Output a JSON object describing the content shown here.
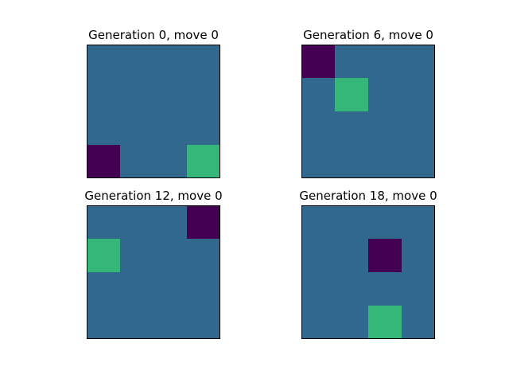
{
  "chart_data": [
    {
      "type": "heatmap",
      "title": "Generation 0, move 0",
      "rows": 4,
      "cols": 4,
      "values": [
        [
          0,
          0,
          0,
          0
        ],
        [
          0,
          0,
          0,
          0
        ],
        [
          0,
          0,
          0,
          0
        ],
        [
          -1,
          0,
          0,
          1
        ]
      ],
      "colors": {
        "-1": "#440154",
        "0": "#31688e",
        "1": "#35b779"
      },
      "xticks": "none",
      "yticks": "none"
    },
    {
      "type": "heatmap",
      "title": "Generation 6, move 0",
      "rows": 4,
      "cols": 4,
      "values": [
        [
          -1,
          0,
          0,
          0
        ],
        [
          0,
          1,
          0,
          0
        ],
        [
          0,
          0,
          0,
          0
        ],
        [
          0,
          0,
          0,
          0
        ]
      ],
      "colors": {
        "-1": "#440154",
        "0": "#31688e",
        "1": "#35b779"
      },
      "xticks": "none",
      "yticks": "none"
    },
    {
      "type": "heatmap",
      "title": "Generation 12, move 0",
      "rows": 4,
      "cols": 4,
      "values": [
        [
          0,
          0,
          0,
          -1
        ],
        [
          1,
          0,
          0,
          0
        ],
        [
          0,
          0,
          0,
          0
        ],
        [
          0,
          0,
          0,
          0
        ]
      ],
      "colors": {
        "-1": "#440154",
        "0": "#31688e",
        "1": "#35b779"
      },
      "xticks": "none",
      "yticks": "none"
    },
    {
      "type": "heatmap",
      "title": "Generation 18, move 0",
      "rows": 4,
      "cols": 4,
      "values": [
        [
          0,
          0,
          0,
          0
        ],
        [
          0,
          0,
          -1,
          0
        ],
        [
          0,
          0,
          0,
          0
        ],
        [
          0,
          0,
          1,
          0
        ]
      ],
      "colors": {
        "-1": "#440154",
        "0": "#31688e",
        "1": "#35b779"
      },
      "xticks": "none",
      "yticks": "none"
    }
  ]
}
